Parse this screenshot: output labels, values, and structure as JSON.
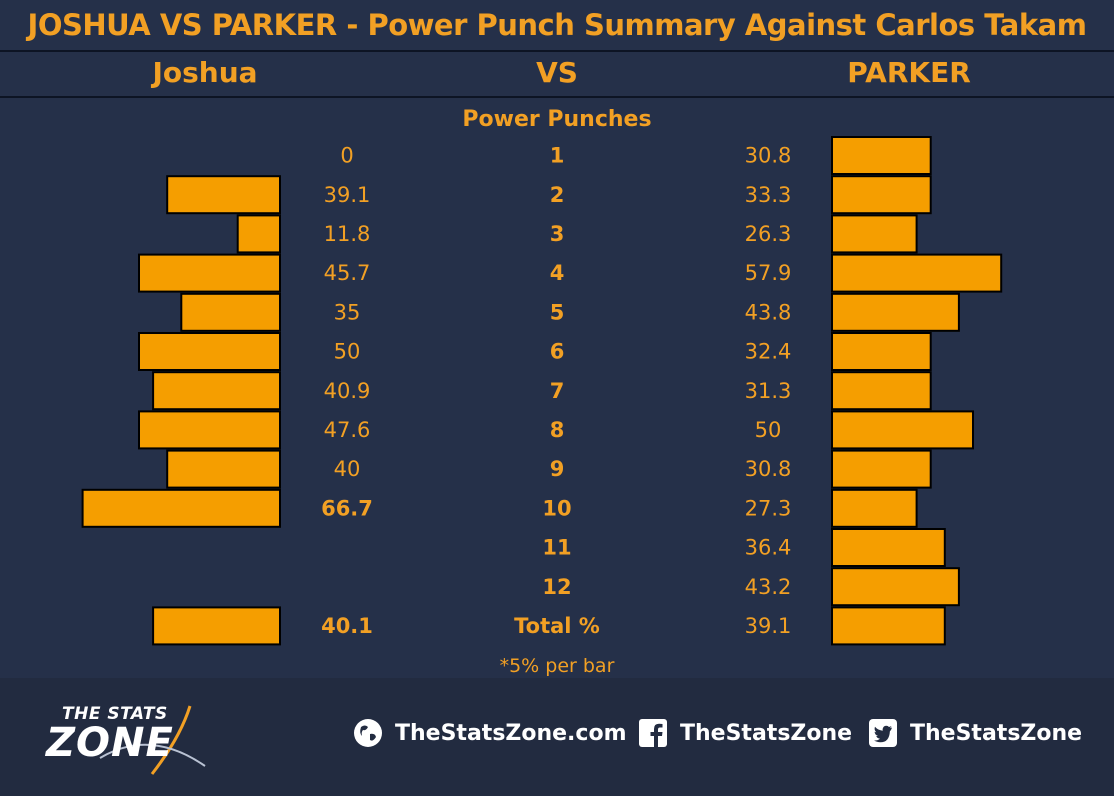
{
  "title": "JOSHUA VS PARKER - Power Punch Summary Against Carlos Takam",
  "header": {
    "left": "Joshua",
    "center": "VS",
    "right": "PARKER"
  },
  "subtitle": "Power Punches",
  "note": "*5% per bar",
  "colors": {
    "accent": "#f2a024",
    "bar": "#f59e00",
    "bg": "#253049",
    "footer": "#222b40"
  },
  "chart_data": {
    "type": "bar",
    "orientation": "horizontal-butterfly",
    "categories": [
      "1",
      "2",
      "3",
      "4",
      "5",
      "6",
      "7",
      "8",
      "9",
      "10",
      "11",
      "12",
      "Total %"
    ],
    "series": [
      {
        "name": "Joshua",
        "values": [
          0,
          39.1,
          11.8,
          45.7,
          35,
          50,
          40.9,
          47.6,
          40,
          66.7,
          null,
          null,
          40.1
        ],
        "labels": [
          "0",
          "39.1",
          "11.8",
          "45.7",
          "35",
          "50",
          "40.9",
          "47.6",
          "40",
          "66.7",
          "",
          "",
          "40.1"
        ]
      },
      {
        "name": "PARKER",
        "values": [
          30.8,
          33.3,
          26.3,
          57.9,
          43.8,
          32.4,
          31.3,
          50,
          30.8,
          27.3,
          36.4,
          43.2,
          39.1
        ],
        "labels": [
          "30.8",
          "33.3",
          "26.3",
          "57.9",
          "43.8",
          "32.4",
          "31.3",
          "50",
          "30.8",
          "27.3",
          "36.4",
          "43.2",
          "39.1"
        ]
      }
    ],
    "bold_left_labels": [
      "66.7",
      "40.1"
    ],
    "bar_step_percent": 5
  },
  "footer": {
    "logo_line1": "THE STATS",
    "logo_line2": "ZONE",
    "website": "TheStatsZone.com",
    "facebook": "TheStatsZone",
    "twitter": "TheStatsZone",
    "icons": [
      "globe-icon",
      "facebook-icon",
      "twitter-icon"
    ]
  }
}
